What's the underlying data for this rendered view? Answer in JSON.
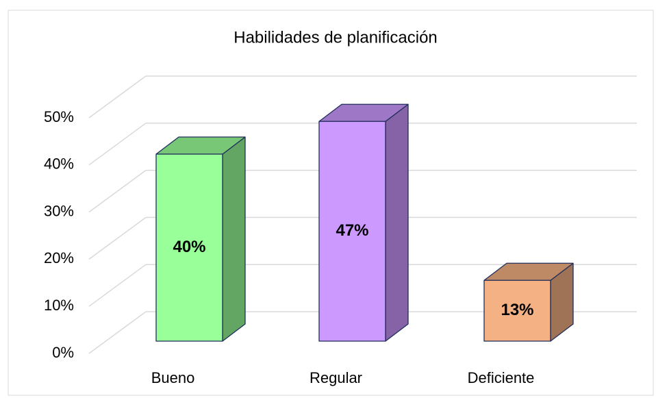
{
  "chart_data": {
    "type": "bar3d",
    "title": "Habilidades de planificación",
    "categories": [
      "Bueno",
      "Regular",
      "Deficiente"
    ],
    "values": [
      40,
      47,
      13
    ],
    "value_labels": [
      "40%",
      "47%",
      "13%"
    ],
    "colors": [
      "#99ff99",
      "#cc99ff",
      "#f4b183"
    ],
    "ylim": [
      0,
      50
    ],
    "yticks": [
      {
        "value": 0,
        "label": "0%"
      },
      {
        "value": 10,
        "label": "10%"
      },
      {
        "value": 20,
        "label": "20%"
      },
      {
        "value": 30,
        "label": "30%"
      },
      {
        "value": 40,
        "label": "40%"
      },
      {
        "value": 50,
        "label": "50%"
      }
    ],
    "grid": true
  }
}
